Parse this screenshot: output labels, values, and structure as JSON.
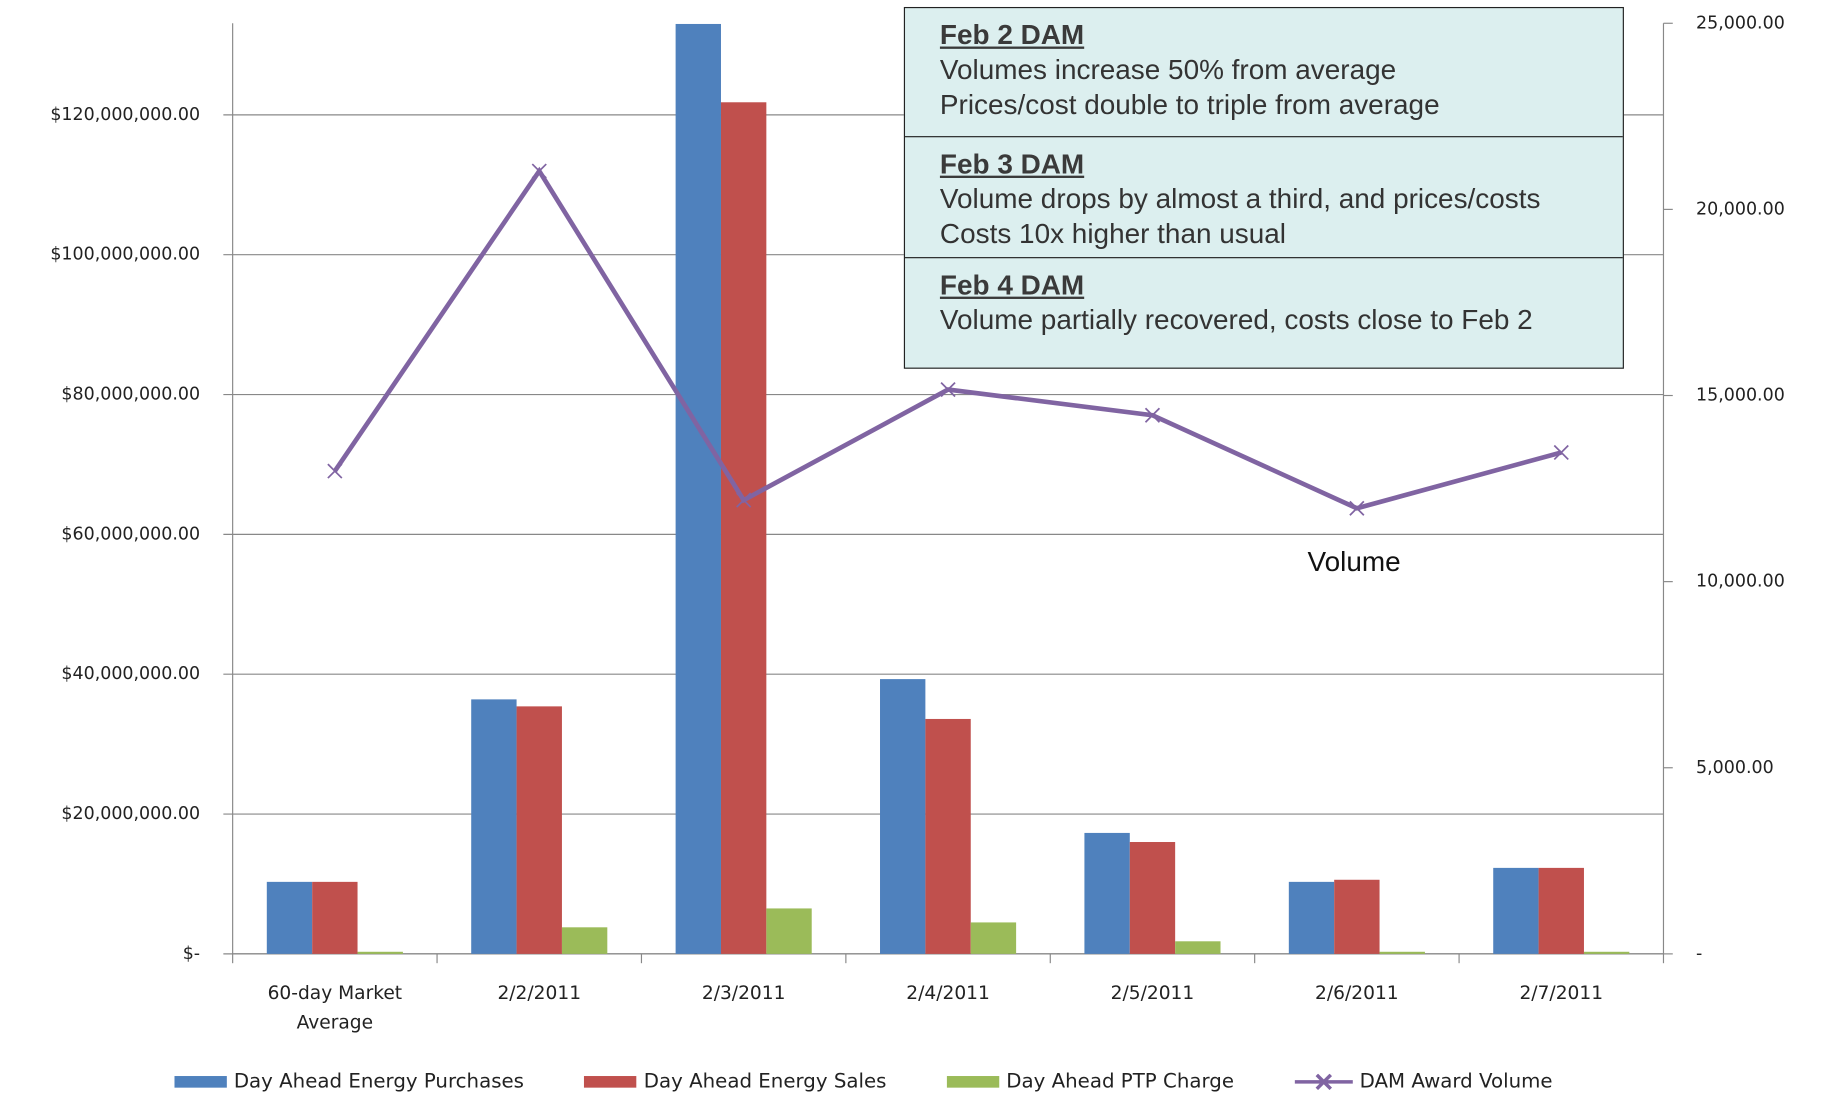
{
  "chart_data": {
    "type": "bar",
    "categories": [
      "60-day Market Average",
      "2/2/2011",
      "2/3/2011",
      "2/4/2011",
      "2/5/2011",
      "2/6/2011",
      "2/7/2011"
    ],
    "series": [
      {
        "name": "Day Ahead Energy Purchases",
        "color": "#4f81bd",
        "values": [
          10300000,
          36400000,
          133000000,
          39300000,
          17300000,
          10300000,
          12300000
        ]
      },
      {
        "name": "Day Ahead Energy Sales",
        "color": "#c0504d",
        "values": [
          10300000,
          35400000,
          121800000,
          33600000,
          16000000,
          10600000,
          12300000
        ]
      },
      {
        "name": "Day Ahead PTP Charge",
        "color": "#9bbb59",
        "values": [
          300000,
          3800000,
          6500000,
          4500000,
          1800000,
          300000,
          300000
        ]
      },
      {
        "name": "DAM Award Volume",
        "color": "#8064a2",
        "type": "line",
        "axis": "y2",
        "marker": "x",
        "values": [
          12970,
          21030,
          12190,
          15160,
          14470,
          11970,
          13470
        ]
      }
    ],
    "ylim": [
      0,
      133100000
    ],
    "yticks": [
      {
        "value": 0,
        "label": "$-"
      },
      {
        "value": 20000000,
        "label": "$20,000,000.00"
      },
      {
        "value": 40000000,
        "label": "$40,000,000.00"
      },
      {
        "value": 60000000,
        "label": "$60,000,000.00"
      },
      {
        "value": 80000000,
        "label": "$80,000,000.00"
      },
      {
        "value": 100000000,
        "label": "$100,000,000.00"
      },
      {
        "value": 120000000,
        "label": "$120,000,000.00"
      }
    ],
    "y2lim": [
      0,
      25000
    ],
    "y2ticks": [
      {
        "value": 0,
        "label": "-"
      },
      {
        "value": 5000,
        "label": "5,000.00"
      },
      {
        "value": 10000,
        "label": "10,000.00"
      },
      {
        "value": 15000,
        "label": "15,000.00"
      },
      {
        "value": 20000,
        "label": "20,000.00"
      },
      {
        "value": 25000,
        "label": "25,000.00"
      }
    ],
    "grid": true,
    "legend": "bottom",
    "annotations": [
      {
        "title": "Feb 2 DAM",
        "lines": [
          "Volumes increase 50% from average",
          "Prices/cost double to triple from average"
        ]
      },
      {
        "title": "Feb 3 DAM",
        "lines": [
          "Volume drops by almost a third, and prices/costs",
          "Costs 10x higher than usual"
        ]
      },
      {
        "title": "Feb 4 DAM",
        "lines": [
          "Volume partially recovered, costs close to Feb 2"
        ]
      }
    ],
    "line_label": "Volume"
  }
}
